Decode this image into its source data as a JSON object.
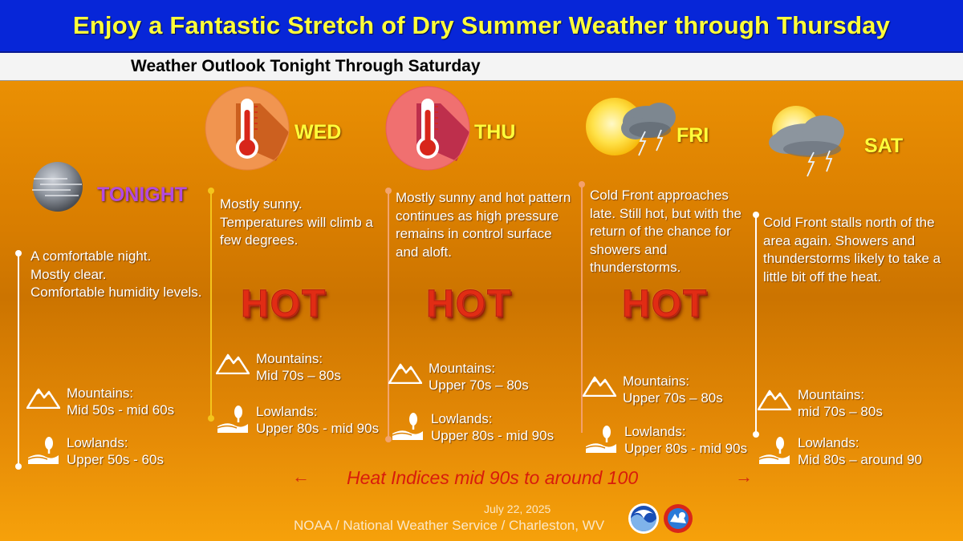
{
  "title": "Enjoy a Fantastic Stretch of Dry Summer Weather through Thursday",
  "subtitle": "Weather Outlook Tonight Through Saturday",
  "periods": [
    {
      "day": "TONIGHT",
      "icon": "clear-night-moon-icon",
      "description": [
        "A comfortable night.",
        "Mostly clear.",
        "Comfortable humidity levels."
      ],
      "hot": "",
      "mountains_label": "Mountains:",
      "mountains_value": "Mid 50s - mid 60s",
      "lowlands_label": "Lowlands:",
      "lowlands_value": "Upper 50s - 60s"
    },
    {
      "day": "WED",
      "icon": "thermometer-hot-icon",
      "description": [
        "Mostly sunny.",
        "Temperatures will climb a",
        "few degrees."
      ],
      "hot": "HOT",
      "mountains_label": "Mountains:",
      "mountains_value": "Mid 70s –  80s",
      "lowlands_label": "Lowlands:",
      "lowlands_value": "Upper 80s - mid 90s"
    },
    {
      "day": "THU",
      "icon": "thermometer-hot-icon",
      "description": [
        "Mostly sunny and hot pattern",
        "continues as high pressure",
        "remains in control surface",
        "and aloft."
      ],
      "hot": "HOT",
      "mountains_label": "Mountains:",
      "mountains_value": "Upper 70s –  80s",
      "lowlands_label": "Lowlands:",
      "lowlands_value": "Upper 80s - mid 90s"
    },
    {
      "day": "FRI",
      "icon": "sun-thunderstorm-icon",
      "description": [
        "Cold Front approaches",
        "late. Still hot, but with the",
        "return of the chance for",
        "showers and",
        "thunderstorms."
      ],
      "hot": "HOT",
      "mountains_label": "Mountains:",
      "mountains_value": "Upper 70s – 80s",
      "lowlands_label": "Lowlands:",
      "lowlands_value": "Upper 80s - mid 90s"
    },
    {
      "day": "SAT",
      "icon": "sun-thunderstorm-icon",
      "description": [
        "Cold Front stalls north of the",
        "area again.  Showers and",
        "thunderstorms likely to take a",
        "little bit off the heat."
      ],
      "hot": "",
      "mountains_label": "Mountains:",
      "mountains_value": "mid 70s – 80s",
      "lowlands_label": "Lowlands:",
      "lowlands_value": "Mid 80s – around 90"
    }
  ],
  "heat_indices": {
    "left_arrow": "←",
    "text": "Heat Indices mid 90s to around 100",
    "right_arrow": "→"
  },
  "footer": {
    "date": "July 22, 2025",
    "organization": "NOAA / National Weather Service / Charleston, WV"
  },
  "colors": {
    "title_bg": "#0726d8",
    "title_text": "#ffff3a",
    "background": "#dc8000",
    "tonight_label": "#b34adf",
    "hot_text": "#e12c14",
    "heat_indices_text": "#d81c0c"
  }
}
